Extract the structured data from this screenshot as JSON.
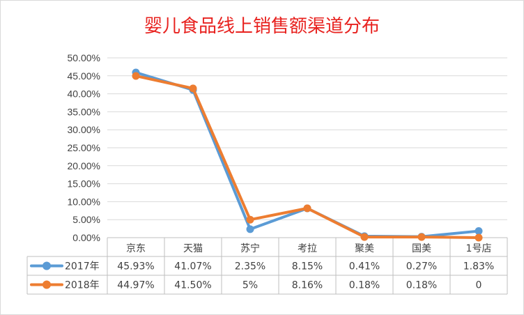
{
  "chart_data": {
    "type": "line",
    "title": "婴儿食品线上销售额渠道分布",
    "categories": [
      "京东",
      "天猫",
      "苏宁",
      "考拉",
      "聚美",
      "国美",
      "1号店"
    ],
    "ylim": [
      0,
      50
    ],
    "yticks": [
      "0.00%",
      "5.00%",
      "10.00%",
      "15.00%",
      "20.00%",
      "25.00%",
      "30.00%",
      "35.00%",
      "40.00%",
      "45.00%",
      "50.00%"
    ],
    "grid": true,
    "legend_position": "data-table",
    "series": [
      {
        "name": "2017年",
        "color": "#5b9bd5",
        "values": [
          45.93,
          41.07,
          2.35,
          8.15,
          0.41,
          0.27,
          1.83
        ],
        "labels": [
          "45.93%",
          "41.07%",
          "2.35%",
          "8.15%",
          "0.41%",
          "0.27%",
          "1.83%"
        ]
      },
      {
        "name": "2018年",
        "color": "#ed7d31",
        "values": [
          44.97,
          41.5,
          5,
          8.16,
          0.18,
          0.18,
          0
        ],
        "labels": [
          "44.97%",
          "41.50%",
          "5%",
          "8.16%",
          "0.18%",
          "0.18%",
          "0"
        ]
      }
    ]
  }
}
